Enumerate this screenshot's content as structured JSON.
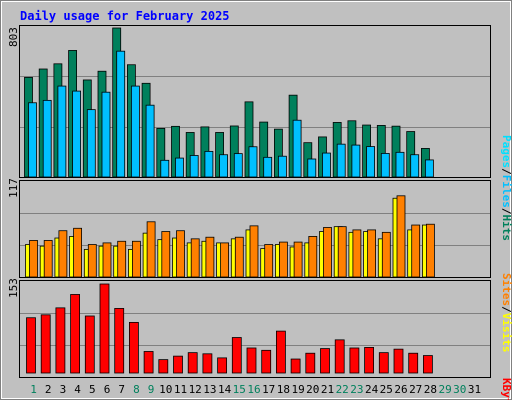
{
  "title": "Daily usage for February 2025",
  "colors": {
    "background": "#c0c0c0",
    "title": "#0000ff",
    "hits": "#00805c",
    "files": "#00c0ff",
    "pages": "#00e0ff",
    "sites": "#ff8000",
    "visits": "#ffff00",
    "kbytes": "#ff0000",
    "weekday_label": "#000000",
    "weekend_label": "#00805c"
  },
  "chart_data": [
    {
      "type": "bar",
      "name": "hits-files-pages",
      "ymax_label": "803",
      "ymax": 803,
      "legend": {
        "pages": "Pages",
        "files": "Files",
        "hits": "Hits",
        "sep1": "/",
        "sep2": "/"
      },
      "series": [
        {
          "name": "Hits",
          "values": [
            537,
            582,
            610,
            682,
            523,
            570,
            803,
            605,
            505,
            262,
            273,
            240,
            270,
            240,
            275,
            405,
            296,
            258,
            441,
            185,
            216,
            294,
            303,
            280,
            278,
            274,
            245,
            154
          ]
        },
        {
          "name": "Files",
          "values": [
            400,
            413,
            490,
            463,
            363,
            457,
            678,
            490,
            387,
            90,
            102,
            116,
            138,
            120,
            126,
            163,
            106,
            112,
            306,
            97,
            129,
            177,
            172,
            164,
            127,
            133,
            120,
            92
          ]
        }
      ]
    },
    {
      "type": "bar",
      "name": "visits-sites",
      "ymax_label": "117",
      "ymax": 117,
      "legend": {
        "sites": "Sites",
        "visits": "Visits",
        "sep": "/"
      },
      "series": [
        {
          "name": "Visits",
          "values": [
            45,
            45,
            57,
            60,
            40,
            42,
            44,
            44,
            68,
            56,
            57,
            47,
            49,
            42,
            49,
            63,
            40,
            43,
            43,
            50,
            61,
            62,
            58,
            58,
            55,
            100,
            64,
            65
          ]
        },
        {
          "name": "Visits2",
          "values": [
            40,
            38,
            48,
            50,
            34,
            38,
            38,
            34,
            54,
            46,
            48,
            42,
            44,
            42,
            47,
            58,
            35,
            40,
            37,
            42,
            56,
            62,
            55,
            56,
            47,
            97,
            58,
            64
          ]
        }
      ]
    },
    {
      "type": "bar",
      "name": "kbytes",
      "ymax_label": "153",
      "ymax": 153,
      "legend": {
        "kbytes": "KBytes"
      },
      "series": [
        {
          "name": "KBytes",
          "values": [
            95,
            100,
            112,
            135,
            98,
            153,
            111,
            87,
            37,
            23,
            29,
            35,
            33,
            26,
            61,
            43,
            39,
            72,
            24,
            34,
            42,
            57,
            43,
            44,
            35,
            41,
            34,
            30
          ]
        }
      ]
    }
  ],
  "x_labels": {
    "days": [
      "1",
      "2",
      "3",
      "4",
      "5",
      "6",
      "7",
      "8",
      "9",
      "10",
      "11",
      "12",
      "13",
      "14",
      "15",
      "16",
      "17",
      "18",
      "19",
      "20",
      "21",
      "22",
      "23",
      "24",
      "25",
      "26",
      "27",
      "28",
      "29",
      "30",
      "31"
    ],
    "weekend_days": [
      1,
      8,
      9,
      15,
      16,
      22,
      23,
      29,
      30
    ]
  }
}
